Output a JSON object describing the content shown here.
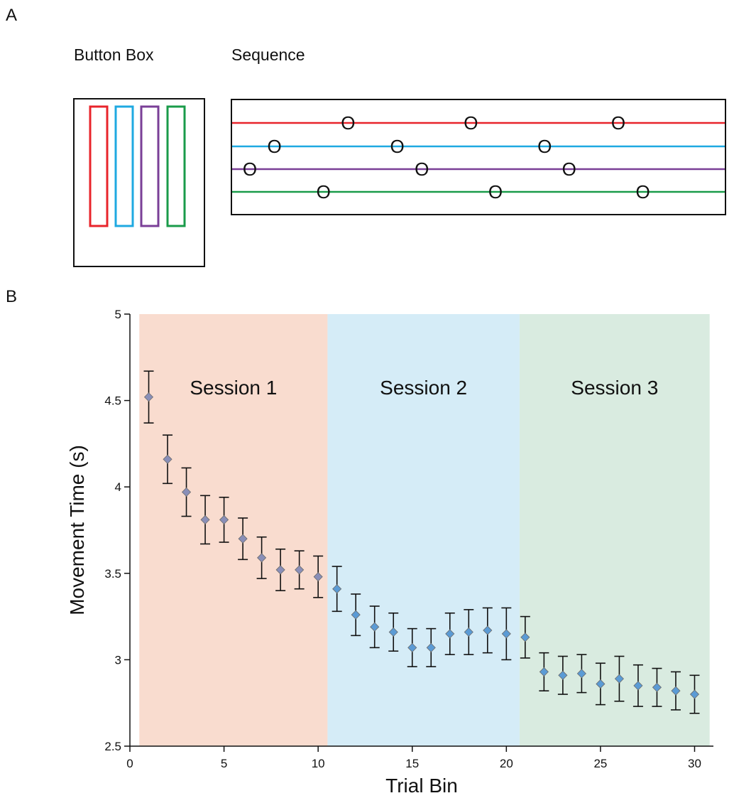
{
  "panel_a": {
    "label": "A",
    "button_box_title": "Button Box",
    "sequence_title": "Sequence",
    "colors": [
      "#e8242b",
      "#1fa9e1",
      "#7a3f97",
      "#1a9b4a"
    ],
    "sequence_symbol": "O",
    "sequence_rows": [
      {
        "color": "#e8242b",
        "marks": [
          5,
          10,
          16
        ]
      },
      {
        "color": "#1fa9e1",
        "marks": [
          2,
          7,
          13
        ]
      },
      {
        "color": "#7a3f97",
        "marks": [
          1,
          8,
          14
        ]
      },
      {
        "color": "#1a9b4a",
        "marks": [
          4,
          11,
          17
        ]
      }
    ]
  },
  "panel_b": {
    "label": "B"
  },
  "chart_data": {
    "type": "scatter",
    "xlabel": "Trial Bin",
    "ylabel": "Movement Time (s)",
    "xlim": [
      0,
      31
    ],
    "ylim": [
      2.5,
      5
    ],
    "xticks": [
      "0",
      "5",
      "10",
      "15",
      "20",
      "25",
      "30"
    ],
    "yticks": [
      "2.5",
      "3",
      "3.5",
      "4",
      "4.5",
      "5"
    ],
    "sessions": [
      {
        "name": "Session 1",
        "range": [
          0.5,
          10.5
        ],
        "color": "#f9dccf"
      },
      {
        "name": "Session 2",
        "range": [
          10.5,
          20.7
        ],
        "color": "#d5ecf7"
      },
      {
        "name": "Session 3",
        "range": [
          20.7,
          30.8
        ],
        "color": "#d9ebe0"
      }
    ],
    "series": [
      {
        "x": [
          1,
          2,
          3,
          4,
          5,
          6,
          7,
          8,
          9,
          10,
          11,
          12,
          13,
          14,
          15,
          16,
          17,
          18,
          19,
          20,
          21,
          22,
          23,
          24,
          25,
          26,
          27,
          28,
          29,
          30
        ],
        "y": [
          4.52,
          4.16,
          3.97,
          3.81,
          3.81,
          3.7,
          3.59,
          3.52,
          3.52,
          3.48,
          3.41,
          3.26,
          3.19,
          3.16,
          3.07,
          3.07,
          3.15,
          3.16,
          3.17,
          3.15,
          3.13,
          2.93,
          2.91,
          2.92,
          2.86,
          2.89,
          2.85,
          2.84,
          2.82,
          2.8
        ],
        "err": [
          0.15,
          0.14,
          0.14,
          0.14,
          0.13,
          0.12,
          0.12,
          0.12,
          0.11,
          0.12,
          0.13,
          0.12,
          0.12,
          0.11,
          0.11,
          0.11,
          0.12,
          0.13,
          0.13,
          0.15,
          0.12,
          0.11,
          0.11,
          0.11,
          0.12,
          0.13,
          0.12,
          0.11,
          0.11,
          0.11
        ],
        "marker_colors": [
          "#8a8fb8",
          "#8a8fb8",
          "#8a8fb8",
          "#8a8fb8",
          "#8a8fb8",
          "#8a8fb8",
          "#8a8fb8",
          "#8a8fb8",
          "#8a8fb8",
          "#8a8fb8",
          "#5b9bd5",
          "#5b9bd5",
          "#5b9bd5",
          "#5b9bd5",
          "#5b9bd5",
          "#5b9bd5",
          "#5b9bd5",
          "#5b9bd5",
          "#5b9bd5",
          "#5b9bd5",
          "#5b9bd5",
          "#5b9bd5",
          "#5b9bd5",
          "#5b9bd5",
          "#5b9bd5",
          "#5b9bd5",
          "#5b9bd5",
          "#5b9bd5",
          "#5b9bd5",
          "#5b9bd5"
        ]
      }
    ]
  }
}
